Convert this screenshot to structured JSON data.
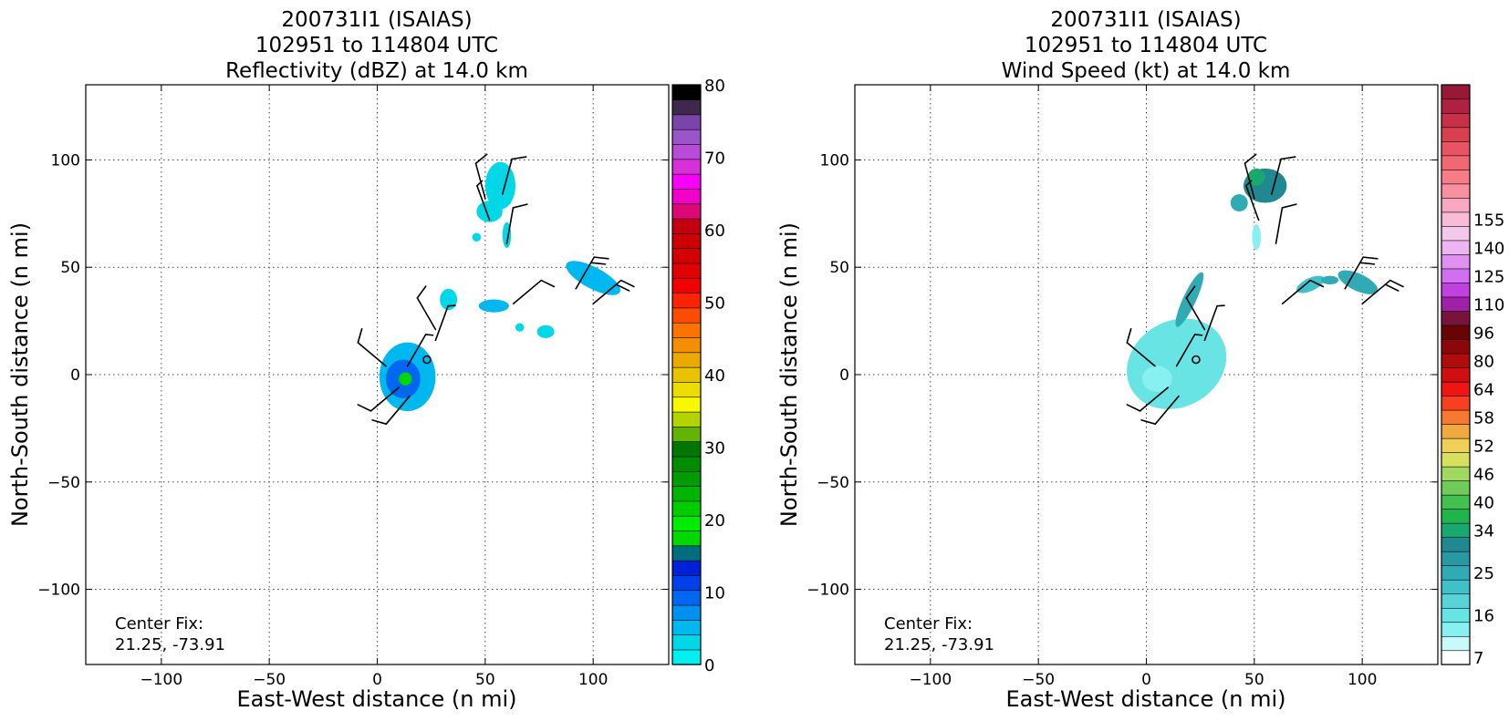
{
  "chart_data": [
    {
      "type": "heatmap",
      "title_lines": [
        "200731I1 (ISAIAS)",
        "102951 to 114804 UTC",
        "Reflectivity (dBZ) at 14.0 km"
      ],
      "xlabel": "East-West distance (n mi)",
      "ylabel": "North-South distance (n mi)",
      "xlim": [
        -135,
        135
      ],
      "ylim": [
        -135,
        135
      ],
      "xticks": [
        -100,
        -50,
        0,
        50,
        100
      ],
      "yticks": [
        -100,
        -50,
        0,
        50,
        100
      ],
      "grid": true,
      "annotation_lines": [
        "Center Fix:",
        "21.25, -73.91"
      ],
      "colorbar": {
        "min": 0,
        "max": 80,
        "ticks": [
          0,
          10,
          20,
          30,
          40,
          50,
          60,
          70,
          80
        ],
        "colors": [
          "#00f0f0",
          "#00d8e8",
          "#00b8f0",
          "#0090f0",
          "#0068f0",
          "#0040e8",
          "#0020d8",
          "#006e7e",
          "#00d800",
          "#00ec00",
          "#00cc00",
          "#00b400",
          "#009c00",
          "#008c00",
          "#007800",
          "#62b400",
          "#b4d400",
          "#f8f800",
          "#ecdc00",
          "#e8c400",
          "#ecaa00",
          "#f49000",
          "#fc7400",
          "#fc4c00",
          "#fc2400",
          "#f20000",
          "#e00000",
          "#d20000",
          "#cc0000",
          "#c40010",
          "#dc0878",
          "#f000c8",
          "#f800f8",
          "#d830d8",
          "#b84cd8",
          "#9a56c8",
          "#7a44a8",
          "#40284c",
          "#000000"
        ]
      },
      "echo_regions": [
        {
          "cx": 14,
          "cy": -1,
          "rx": 13,
          "ry": 16,
          "color": "#00b8f0"
        },
        {
          "cx": 12,
          "cy": -2,
          "rx": 8,
          "ry": 9,
          "color": "#0068f0"
        },
        {
          "cx": 13,
          "cy": -2,
          "rx": 3,
          "ry": 3,
          "color": "#00d800"
        },
        {
          "cx": 57,
          "cy": 88,
          "rx": 7,
          "ry": 11,
          "color": "#00d8e8"
        },
        {
          "cx": 52,
          "cy": 76,
          "rx": 6,
          "ry": 5,
          "color": "#00d8e8"
        },
        {
          "cx": 46,
          "cy": 64,
          "rx": 2,
          "ry": 2,
          "color": "#00d8e8"
        },
        {
          "cx": 60,
          "cy": 65,
          "rx": 2,
          "ry": 6,
          "color": "#00d8e8"
        },
        {
          "cx": 100,
          "cy": 45,
          "rx": 14,
          "ry": 5,
          "color": "#00b8f0",
          "rotate": 28
        },
        {
          "cx": 33,
          "cy": 35,
          "rx": 4,
          "ry": 5,
          "color": "#00d8e8"
        },
        {
          "cx": 54,
          "cy": 32,
          "rx": 7,
          "ry": 3,
          "color": "#00b8f0"
        },
        {
          "cx": 78,
          "cy": 20,
          "rx": 4,
          "ry": 3,
          "color": "#00d8e8"
        },
        {
          "cx": 66,
          "cy": 22,
          "rx": 2,
          "ry": 2,
          "color": "#00d8e8"
        }
      ]
    },
    {
      "type": "heatmap",
      "title_lines": [
        "200731I1 (ISAIAS)",
        "102951 to 114804 UTC",
        "Wind Speed (kt) at 14.0 km"
      ],
      "xlabel": "East-West distance (n mi)",
      "ylabel": "North-South distance (n mi)",
      "xlim": [
        -135,
        135
      ],
      "ylim": [
        -135,
        135
      ],
      "xticks": [
        -100,
        -50,
        0,
        50,
        100
      ],
      "yticks": [
        -100,
        -50,
        0,
        50,
        100
      ],
      "grid": true,
      "annotation_lines": [
        "Center Fix:",
        "21.25, -73.91"
      ],
      "colorbar": {
        "tick_labels": [
          "7",
          "16",
          "25",
          "34",
          "40",
          "46",
          "52",
          "58",
          "64",
          "80",
          "96",
          "110",
          "125",
          "140",
          "155"
        ],
        "tick_index": [
          0,
          3,
          6,
          9,
          11,
          13,
          15,
          17,
          19,
          21,
          23,
          25,
          27,
          29,
          31
        ],
        "colors": [
          "#ffffff",
          "#c8fafa",
          "#88f0f0",
          "#68e4e4",
          "#58d4d8",
          "#40c0c8",
          "#30aab4",
          "#2898a4",
          "#208890",
          "#18a870",
          "#20b44c",
          "#44c050",
          "#70cc58",
          "#a0d860",
          "#d8e060",
          "#f0d058",
          "#f0a840",
          "#f87830",
          "#f84020",
          "#f01414",
          "#d01010",
          "#b00c0c",
          "#8c0808",
          "#680404",
          "#78143c",
          "#a020a8",
          "#c040e0",
          "#d070f0",
          "#e090f0",
          "#ecb4f0",
          "#f4c8ec",
          "#f8bcd8",
          "#f8a8c0",
          "#f890a0",
          "#f87c88",
          "#f06874",
          "#e85464",
          "#d84050",
          "#c83048",
          "#b02040",
          "#981838"
        ]
      },
      "echo_regions": [
        {
          "cx": 55,
          "cy": 88,
          "rx": 10,
          "ry": 8,
          "color": "#208890"
        },
        {
          "cx": 51,
          "cy": 92,
          "rx": 4,
          "ry": 4,
          "color": "#18a870"
        },
        {
          "cx": 43,
          "cy": 80,
          "rx": 4,
          "ry": 4,
          "color": "#30aab4"
        },
        {
          "cx": 51,
          "cy": 64,
          "rx": 2,
          "ry": 6,
          "color": "#88f0f0"
        },
        {
          "cx": 14,
          "cy": 5,
          "rx": 24,
          "ry": 20,
          "color": "#68e4e4",
          "rotate": -30
        },
        {
          "cx": 5,
          "cy": -2,
          "rx": 7,
          "ry": 6,
          "color": "#88f0f0"
        },
        {
          "cx": 20,
          "cy": 35,
          "rx": 3,
          "ry": 14,
          "color": "#30aab4",
          "rotate": 25
        },
        {
          "cx": 76,
          "cy": 42,
          "rx": 7,
          "ry": 3,
          "color": "#40c0c8",
          "rotate": -25
        },
        {
          "cx": 98,
          "cy": 43,
          "rx": 10,
          "ry": 4,
          "color": "#30aab4",
          "rotate": 25
        },
        {
          "cx": 85,
          "cy": 44,
          "rx": 4,
          "ry": 2,
          "color": "#30aab4"
        }
      ]
    }
  ],
  "wind_barbs": [
    {
      "x": 23,
      "y": 7,
      "calm": true
    },
    {
      "x": 14,
      "y": 4,
      "dir": 30,
      "barbs": [
        0.5
      ]
    },
    {
      "x": 4,
      "y": 4,
      "dir": 310,
      "barbs": [
        1
      ]
    },
    {
      "x": 10,
      "y": -6,
      "dir": 230,
      "barbs": [
        1
      ]
    },
    {
      "x": 15,
      "y": -10,
      "dir": 220,
      "barbs": [
        1
      ]
    },
    {
      "x": 27,
      "y": 21,
      "dir": 330,
      "barbs": [
        1
      ]
    },
    {
      "x": 50,
      "y": 82,
      "dir": 345,
      "barbs": [
        1
      ]
    },
    {
      "x": 58,
      "y": 84,
      "dir": 15,
      "barbs": [
        1
      ]
    },
    {
      "x": 52,
      "y": 72,
      "dir": 340,
      "barbs": [
        0.5
      ]
    },
    {
      "x": 60,
      "y": 61,
      "dir": 10,
      "barbs": [
        1
      ]
    },
    {
      "x": 92,
      "y": 40,
      "dir": 30,
      "barbs": [
        1,
        1
      ]
    },
    {
      "x": 100,
      "y": 33,
      "dir": 50,
      "barbs": [
        1,
        1
      ]
    },
    {
      "x": 63,
      "y": 33,
      "dir": 50,
      "barbs": [
        1
      ]
    },
    {
      "x": 27,
      "y": 16,
      "dir": 20,
      "barbs": [
        0.5
      ]
    }
  ]
}
